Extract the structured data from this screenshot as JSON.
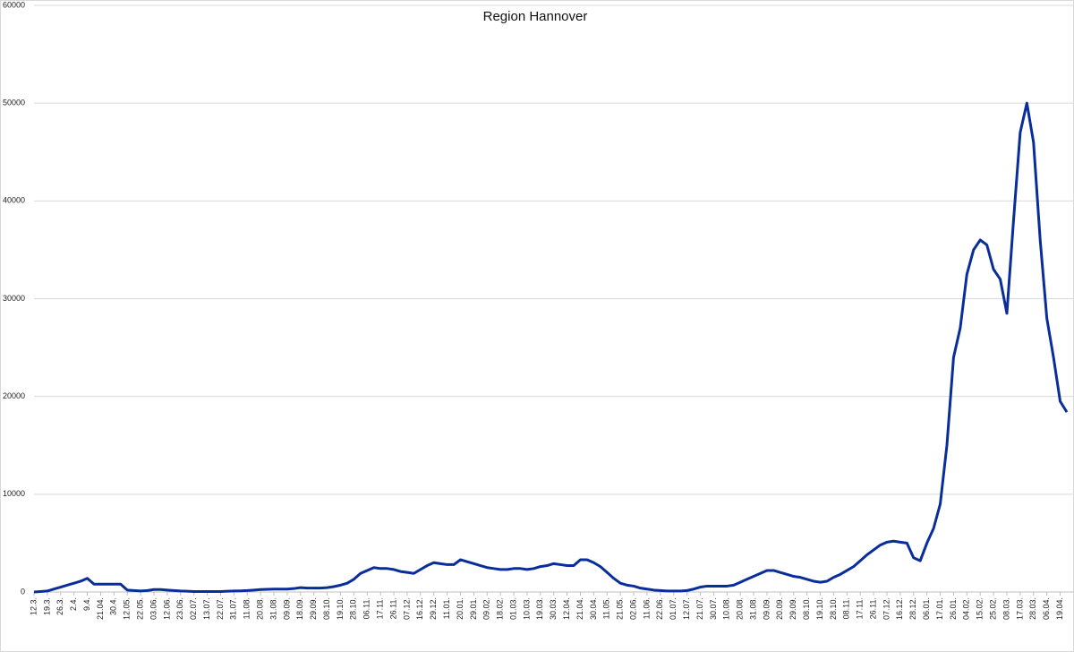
{
  "chart_data": {
    "type": "line",
    "title": "Region Hannover",
    "categories": [
      "12.3.",
      null,
      "19.3.",
      null,
      "26.3.",
      null,
      "2.4.",
      null,
      "9.4.",
      null,
      "21.04.",
      null,
      "30.4.",
      null,
      "12.05.",
      null,
      "22.05.",
      null,
      "03.06.",
      null,
      "12.06.",
      null,
      "23.06.",
      null,
      "02.07.",
      null,
      "13.07.",
      null,
      "22.07.",
      null,
      "31.07.",
      null,
      "11.08.",
      null,
      "20.08.",
      null,
      "31.08.",
      null,
      "09.09.",
      null,
      "18.09.",
      null,
      "29.09.",
      null,
      "08.10.",
      null,
      "19.10.",
      null,
      "28.10.",
      null,
      "06.11.",
      null,
      "17.11.",
      null,
      "26.11.",
      null,
      "07.12.",
      null,
      "16.12.",
      null,
      "29.12.",
      null,
      "11.01.",
      null,
      "20.01.",
      null,
      "29.01.",
      null,
      "09.02.",
      null,
      "18.02.",
      null,
      "01.03.",
      null,
      "10.03.",
      null,
      "19.03.",
      null,
      "30.03.",
      null,
      "12.04.",
      null,
      "21.04.",
      null,
      "30.04.",
      null,
      "11.05.",
      null,
      "21.05.",
      null,
      "02.06.",
      null,
      "11.06.",
      null,
      "22.06.",
      null,
      "01.07.",
      null,
      "12.07.",
      null,
      "21.07.",
      null,
      "30.07.",
      null,
      "10.08.",
      null,
      "20.08.",
      null,
      "31.08.",
      null,
      "09.09.",
      null,
      "20.09.",
      null,
      "29.09.",
      null,
      "08.10.",
      null,
      "19.10.",
      null,
      "28.10.",
      null,
      "08.11.",
      null,
      "17.11.",
      null,
      "26.11.",
      null,
      "07.12.",
      null,
      "16.12.",
      null,
      "28.12.",
      null,
      "06.01.",
      null,
      "17.01.",
      null,
      "26.01.",
      null,
      "04.02.",
      null,
      "15.02.",
      null,
      "25.02.",
      null,
      "08.03.",
      null,
      "17.03.",
      null,
      "28.03.",
      null,
      "06.04.",
      null,
      "19.04.",
      null
    ],
    "series": [
      {
        "color": "#0a2d9c",
        "values": [
          0,
          50,
          100,
          300,
          500,
          700,
          900,
          1100,
          1400,
          800,
          800,
          800,
          800,
          800,
          200,
          150,
          100,
          150,
          250,
          250,
          200,
          150,
          100,
          80,
          50,
          50,
          50,
          50,
          50,
          80,
          100,
          120,
          150,
          200,
          250,
          280,
          300,
          300,
          300,
          350,
          450,
          400,
          400,
          400,
          450,
          550,
          700,
          900,
          1300,
          1900,
          2200,
          2500,
          2400,
          2400,
          2300,
          2100,
          2000,
          1900,
          2300,
          2700,
          3000,
          2900,
          2800,
          2800,
          3300,
          3100,
          2900,
          2700,
          2500,
          2400,
          2300,
          2300,
          2400,
          2400,
          2300,
          2400,
          2600,
          2700,
          2900,
          2800,
          2700,
          2700,
          3300,
          3300,
          3000,
          2600,
          2000,
          1400,
          900,
          700,
          600,
          400,
          300,
          200,
          150,
          100,
          100,
          100,
          150,
          300,
          500,
          600,
          600,
          600,
          600,
          700,
          1000,
          1300,
          1600,
          1900,
          2200,
          2200,
          2000,
          1800,
          1600,
          1500,
          1300,
          1100,
          1000,
          1100,
          1500,
          1800,
          2200,
          2600,
          3200,
          3800,
          4300,
          4800,
          5100,
          5200,
          5100,
          5000,
          3500,
          3200,
          5000,
          6500,
          9000,
          15000,
          24000,
          27000,
          32500,
          35000,
          36000,
          35500,
          33000,
          32000,
          28500,
          38000,
          47000,
          50000,
          46000,
          36000,
          28000,
          24000,
          19500,
          18400
        ]
      }
    ],
    "ylim": [
      0,
      60000
    ],
    "yticks": [
      0,
      10000,
      20000,
      30000,
      40000,
      50000,
      60000
    ],
    "grid": true
  }
}
